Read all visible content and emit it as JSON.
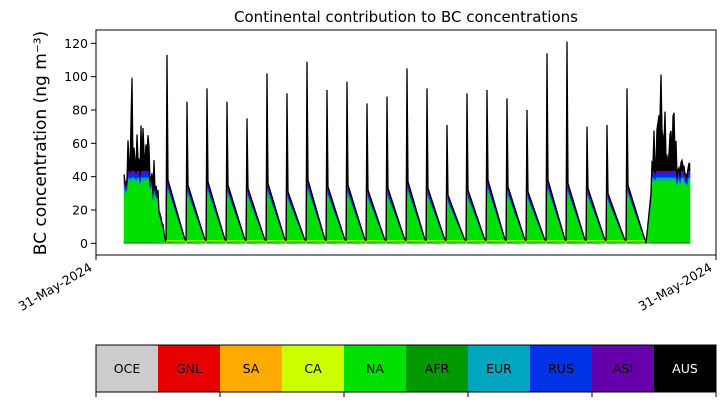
{
  "chart_data": {
    "type": "area",
    "title": "Continental contribution to BC concentrations",
    "ylabel": "BC concentration (ng m⁻³)",
    "xlabel": "",
    "x_tick_labels": [
      "31-May-2024",
      "31-May-2024"
    ],
    "y_ticks": [
      0,
      20,
      40,
      60,
      80,
      100,
      120
    ],
    "ylim": [
      -7,
      128
    ],
    "grid": false,
    "stacking_order_bottom_to_top": [
      "AFR",
      "NA",
      "EUR",
      "RUS",
      "ASI",
      "AUS"
    ],
    "series_colors": {
      "OCE": "#cccccc",
      "GNL": "#e60000",
      "SA": "#ffaa00",
      "CA": "#ccff00",
      "NA": "#00e000",
      "AFR": "#009900",
      "EUR": "#00a6bf",
      "RUS": "#0033e6",
      "ASI": "#6600aa",
      "AUS": "#000000"
    },
    "spikes": [
      {
        "peak": 113,
        "base": 38
      },
      {
        "peak": 85,
        "base": 35
      },
      {
        "peak": 93,
        "base": 37
      },
      {
        "peak": 85,
        "base": 35
      },
      {
        "peak": 75,
        "base": 33
      },
      {
        "peak": 102,
        "base": 36
      },
      {
        "peak": 90,
        "base": 31
      },
      {
        "peak": 109,
        "base": 38
      },
      {
        "peak": 92,
        "base": 34
      },
      {
        "peak": 97,
        "base": 35
      },
      {
        "peak": 84,
        "base": 32
      },
      {
        "peak": 88,
        "base": 33
      },
      {
        "peak": 105,
        "base": 37
      },
      {
        "peak": 93,
        "base": 33
      },
      {
        "peak": 71,
        "base": 29
      },
      {
        "peak": 90,
        "base": 32
      },
      {
        "peak": 92,
        "base": 38
      },
      {
        "peak": 87,
        "base": 34
      },
      {
        "peak": 80,
        "base": 31
      },
      {
        "peak": 114,
        "base": 38
      },
      {
        "peak": 121,
        "base": 36
      },
      {
        "peak": 70,
        "base": 33
      },
      {
        "peak": 71,
        "base": 30
      },
      {
        "peak": 93,
        "base": 35
      }
    ],
    "left_noisy_period": {
      "typical_low": 40,
      "typical_high": 75,
      "max": 99
    },
    "right_noisy_period": {
      "typical_low": 40,
      "typical_high": 80,
      "max": 101,
      "end_value": 48
    }
  },
  "legend": {
    "items": [
      {
        "label": "OCE",
        "color": "#cccccc",
        "text_color": "#000000"
      },
      {
        "label": "GNL",
        "color": "#e60000",
        "text_color": "#000000"
      },
      {
        "label": "SA",
        "color": "#ffaa00",
        "text_color": "#000000"
      },
      {
        "label": "CA",
        "color": "#ccff00",
        "text_color": "#000000"
      },
      {
        "label": "NA",
        "color": "#00e000",
        "text_color": "#000000"
      },
      {
        "label": "AFR",
        "color": "#009900",
        "text_color": "#000000"
      },
      {
        "label": "EUR",
        "color": "#00a6bf",
        "text_color": "#000000"
      },
      {
        "label": "RUS",
        "color": "#0033e6",
        "text_color": "#000000"
      },
      {
        "label": "ASI",
        "color": "#6600aa",
        "text_color": "#000000"
      },
      {
        "label": "AUS",
        "color": "#000000",
        "text_color": "#ffffff"
      }
    ]
  }
}
